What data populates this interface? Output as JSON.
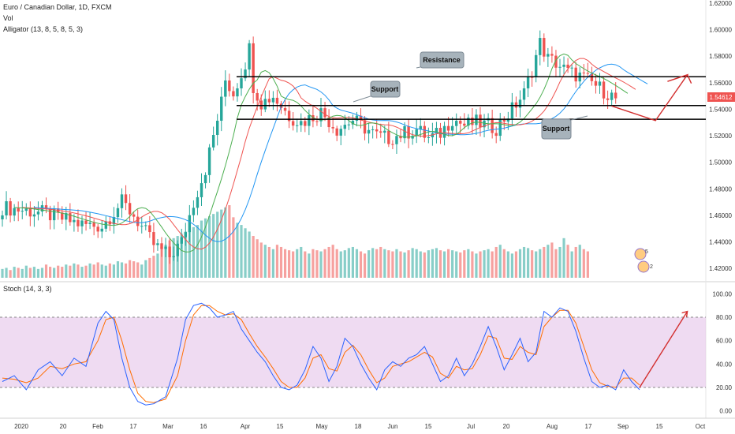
{
  "header": {
    "symbol_title": "Euro / Canadian Dollar, 1D, FXCM",
    "volume_label": "Vol",
    "alligator_label": "Alligator (13, 8, 5, 8, 5, 3)",
    "stoch_label": "Stoch (14, 3, 3)"
  },
  "price_tag": "1.54612",
  "annotations": {
    "resistance": "Resistance",
    "support_upper": "Support",
    "support_lower": "Support"
  },
  "badge": {
    "count_top": "5",
    "count_bottom": "2"
  },
  "colors": {
    "up": "#26a69a",
    "down": "#ef5350",
    "jaw": "#2196f3",
    "teeth": "#ef5350",
    "lips": "#4caf50",
    "stoch_k": "#2962ff",
    "stoch_d": "#ff6d00",
    "stoch_band": "#e1bee7",
    "arrow": "#d32f2f",
    "price_tag_bg": "#ef5350",
    "callout_bg": "#a7b3bb"
  },
  "chart_data": {
    "type": "candlestick",
    "x_ticks": [
      "2020",
      "20",
      "Feb",
      "17",
      "Mar",
      "16",
      "Apr",
      "15",
      "May",
      "18",
      "Jun",
      "15",
      "Jul",
      "20",
      "Aug",
      "17",
      "Sep",
      "15",
      "Oct"
    ],
    "price_axis": {
      "ticks": [
        "1.42000",
        "1.44000",
        "1.46000",
        "1.48000",
        "1.50000",
        "1.52000",
        "1.54000",
        "1.56000",
        "1.58000",
        "1.60000",
        "1.62000"
      ],
      "ylim": [
        1.41,
        1.62
      ]
    },
    "stoch_axis": {
      "ticks": [
        "0.00",
        "20.00",
        "40.00",
        "60.00",
        "80.00",
        "100.00"
      ],
      "ylim": [
        -5,
        105
      ],
      "band": [
        20,
        80
      ]
    },
    "price_path": [
      [
        0,
        1.466
      ],
      [
        10,
        1.462
      ],
      [
        20,
        1.453
      ],
      [
        25,
        1.452
      ],
      [
        30,
        1.47
      ],
      [
        33,
        1.46
      ],
      [
        38,
        1.438
      ],
      [
        42,
        1.429
      ],
      [
        45,
        1.44
      ],
      [
        48,
        1.47
      ],
      [
        51,
        1.495
      ],
      [
        53,
        1.52
      ],
      [
        55,
        1.545
      ],
      [
        56,
        1.562
      ],
      [
        58,
        1.552
      ],
      [
        61,
        1.575
      ],
      [
        62,
        1.586
      ],
      [
        63,
        1.558
      ],
      [
        65,
        1.545
      ],
      [
        68,
        1.55
      ],
      [
        72,
        1.535
      ],
      [
        75,
        1.53
      ],
      [
        80,
        1.538
      ],
      [
        84,
        1.525
      ],
      [
        88,
        1.532
      ],
      [
        90,
        1.528
      ],
      [
        94,
        1.52
      ],
      [
        97,
        1.518
      ],
      [
        101,
        1.522
      ],
      [
        104,
        1.525
      ],
      [
        107,
        1.518
      ],
      [
        110,
        1.522
      ],
      [
        113,
        1.533
      ],
      [
        116,
        1.528
      ],
      [
        119,
        1.53
      ],
      [
        124,
        1.526
      ],
      [
        128,
        1.54
      ],
      [
        131,
        1.552
      ],
      [
        133,
        1.57
      ],
      [
        135,
        1.59
      ],
      [
        137,
        1.578
      ],
      [
        139,
        1.575
      ],
      [
        142,
        1.568
      ],
      [
        145,
        1.565
      ],
      [
        148,
        1.56
      ],
      [
        150,
        1.556
      ],
      [
        152,
        1.552
      ],
      [
        154,
        1.548
      ]
    ],
    "volume": [
      8,
      9,
      7,
      10,
      9,
      8,
      11,
      9,
      10,
      8,
      9,
      12,
      10,
      9,
      11,
      10,
      12,
      11,
      13,
      12,
      10,
      11,
      13,
      12,
      14,
      12,
      11,
      13,
      12,
      15,
      14,
      13,
      16,
      15,
      14,
      12,
      16,
      18,
      20,
      22,
      28,
      30,
      34,
      36,
      38,
      40,
      42,
      44,
      46,
      48,
      52,
      54,
      56,
      58,
      60,
      62,
      64,
      66,
      55,
      50,
      48,
      45,
      42,
      38,
      35,
      32,
      30,
      28,
      26,
      30,
      28,
      26,
      25,
      24,
      26,
      28,
      24,
      22,
      26,
      25,
      24,
      26,
      28,
      30,
      26,
      24,
      25,
      27,
      28,
      26,
      24,
      22,
      25,
      27,
      26,
      28,
      26,
      25,
      24,
      26,
      24,
      23,
      25,
      27,
      26,
      24,
      23,
      25,
      26,
      27,
      25,
      24,
      26,
      25,
      24,
      23,
      25,
      26,
      24,
      22,
      24,
      25,
      26,
      24,
      28,
      30,
      26,
      24,
      22,
      24,
      26,
      28,
      27,
      25,
      24,
      26,
      28,
      30,
      32,
      26,
      28,
      36,
      30,
      24,
      28,
      30,
      26,
      24
    ],
    "stoch_k": [
      [
        0,
        25
      ],
      [
        3,
        30
      ],
      [
        6,
        18
      ],
      [
        9,
        35
      ],
      [
        12,
        42
      ],
      [
        15,
        30
      ],
      [
        18,
        45
      ],
      [
        21,
        38
      ],
      [
        24,
        75
      ],
      [
        26,
        85
      ],
      [
        28,
        78
      ],
      [
        30,
        45
      ],
      [
        32,
        20
      ],
      [
        34,
        8
      ],
      [
        36,
        5
      ],
      [
        38,
        6
      ],
      [
        41,
        12
      ],
      [
        44,
        45
      ],
      [
        46,
        78
      ],
      [
        48,
        90
      ],
      [
        50,
        92
      ],
      [
        52,
        88
      ],
      [
        54,
        80
      ],
      [
        56,
        82
      ],
      [
        58,
        85
      ],
      [
        60,
        70
      ],
      [
        62,
        60
      ],
      [
        64,
        50
      ],
      [
        66,
        42
      ],
      [
        68,
        30
      ],
      [
        70,
        20
      ],
      [
        72,
        18
      ],
      [
        74,
        22
      ],
      [
        76,
        35
      ],
      [
        78,
        55
      ],
      [
        80,
        45
      ],
      [
        82,
        25
      ],
      [
        84,
        38
      ],
      [
        86,
        62
      ],
      [
        88,
        55
      ],
      [
        90,
        40
      ],
      [
        92,
        28
      ],
      [
        94,
        18
      ],
      [
        96,
        35
      ],
      [
        98,
        42
      ],
      [
        100,
        38
      ],
      [
        102,
        45
      ],
      [
        104,
        48
      ],
      [
        106,
        55
      ],
      [
        108,
        40
      ],
      [
        110,
        25
      ],
      [
        112,
        30
      ],
      [
        114,
        45
      ],
      [
        116,
        30
      ],
      [
        118,
        40
      ],
      [
        120,
        55
      ],
      [
        122,
        72
      ],
      [
        124,
        55
      ],
      [
        126,
        35
      ],
      [
        128,
        48
      ],
      [
        130,
        62
      ],
      [
        132,
        42
      ],
      [
        134,
        50
      ],
      [
        136,
        85
      ],
      [
        138,
        80
      ],
      [
        140,
        88
      ],
      [
        142,
        85
      ],
      [
        144,
        68
      ],
      [
        146,
        45
      ],
      [
        148,
        25
      ],
      [
        150,
        20
      ],
      [
        152,
        22
      ],
      [
        154,
        18
      ],
      [
        156,
        35
      ],
      [
        158,
        25
      ],
      [
        160,
        18
      ]
    ],
    "stoch_d": [
      [
        0,
        28
      ],
      [
        3,
        27
      ],
      [
        6,
        24
      ],
      [
        9,
        28
      ],
      [
        12,
        38
      ],
      [
        15,
        36
      ],
      [
        18,
        40
      ],
      [
        21,
        42
      ],
      [
        24,
        60
      ],
      [
        26,
        78
      ],
      [
        28,
        80
      ],
      [
        30,
        60
      ],
      [
        32,
        35
      ],
      [
        34,
        15
      ],
      [
        36,
        8
      ],
      [
        38,
        7
      ],
      [
        41,
        10
      ],
      [
        44,
        30
      ],
      [
        46,
        60
      ],
      [
        48,
        82
      ],
      [
        50,
        90
      ],
      [
        52,
        90
      ],
      [
        54,
        85
      ],
      [
        56,
        82
      ],
      [
        58,
        83
      ],
      [
        60,
        78
      ],
      [
        62,
        66
      ],
      [
        64,
        55
      ],
      [
        66,
        46
      ],
      [
        68,
        36
      ],
      [
        70,
        25
      ],
      [
        72,
        20
      ],
      [
        74,
        20
      ],
      [
        76,
        28
      ],
      [
        78,
        45
      ],
      [
        80,
        48
      ],
      [
        82,
        36
      ],
      [
        84,
        34
      ],
      [
        86,
        50
      ],
      [
        88,
        56
      ],
      [
        90,
        48
      ],
      [
        92,
        35
      ],
      [
        94,
        24
      ],
      [
        96,
        28
      ],
      [
        98,
        38
      ],
      [
        100,
        40
      ],
      [
        102,
        42
      ],
      [
        104,
        46
      ],
      [
        106,
        50
      ],
      [
        108,
        46
      ],
      [
        110,
        32
      ],
      [
        112,
        28
      ],
      [
        114,
        38
      ],
      [
        116,
        35
      ],
      [
        118,
        36
      ],
      [
        120,
        48
      ],
      [
        122,
        64
      ],
      [
        124,
        62
      ],
      [
        126,
        45
      ],
      [
        128,
        44
      ],
      [
        130,
        55
      ],
      [
        132,
        50
      ],
      [
        134,
        48
      ],
      [
        136,
        72
      ],
      [
        138,
        80
      ],
      [
        140,
        86
      ],
      [
        142,
        86
      ],
      [
        144,
        75
      ],
      [
        146,
        55
      ],
      [
        148,
        35
      ],
      [
        150,
        24
      ],
      [
        152,
        21
      ],
      [
        154,
        20
      ],
      [
        156,
        28
      ],
      [
        158,
        28
      ],
      [
        160,
        22
      ]
    ],
    "levels": {
      "resistance": 1.5645,
      "support_upper": 1.5428,
      "support_lower": 1.5325
    },
    "projection": {
      "price": [
        [
          153,
          1.5425
        ],
        [
          164,
          1.5315
        ],
        [
          172,
          1.566
        ],
        [
          167,
          1.561
        ],
        [
          172,
          1.566
        ],
        [
          173,
          1.5595
        ]
      ],
      "stoch": [
        [
          160,
          20
        ],
        [
          172,
          85
        ]
      ]
    }
  }
}
